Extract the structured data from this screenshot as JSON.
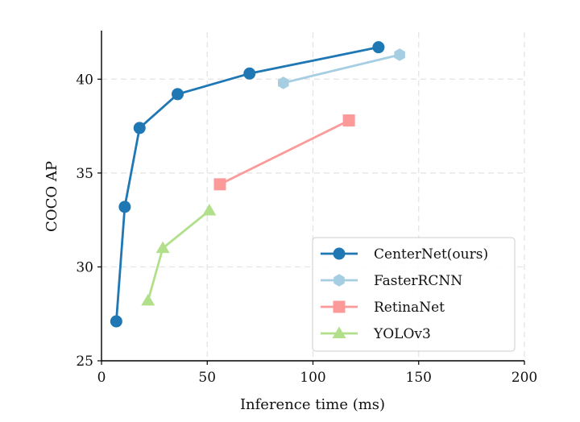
{
  "chart_data": {
    "type": "line",
    "xlabel": "Inference time (ms)",
    "ylabel": "COCO AP",
    "xlim": [
      0,
      200
    ],
    "ylim": [
      25,
      42.5
    ],
    "xticks": [
      0,
      50,
      100,
      150,
      200
    ],
    "yticks": [
      25,
      30,
      35,
      40
    ],
    "grid": true,
    "legend_position": "lower-right",
    "series": [
      {
        "name": "CenterNet(ours)",
        "color": "#1f77b4",
        "marker": "circle",
        "x": [
          7,
          11,
          18,
          36,
          70,
          131
        ],
        "y": [
          27.1,
          33.2,
          37.4,
          39.2,
          40.3,
          41.7
        ]
      },
      {
        "name": "FasterRCNN",
        "color": "#a6cee3",
        "marker": "hexagon",
        "x": [
          86,
          141
        ],
        "y": [
          39.8,
          41.3
        ]
      },
      {
        "name": "RetinaNet",
        "color": "#fb9a99",
        "marker": "square",
        "x": [
          56,
          117
        ],
        "y": [
          34.4,
          37.8
        ]
      },
      {
        "name": "YOLOv3",
        "color": "#b2df8a",
        "marker": "triangle",
        "x": [
          22,
          29,
          51
        ],
        "y": [
          28.2,
          31.0,
          33.0
        ]
      }
    ]
  }
}
